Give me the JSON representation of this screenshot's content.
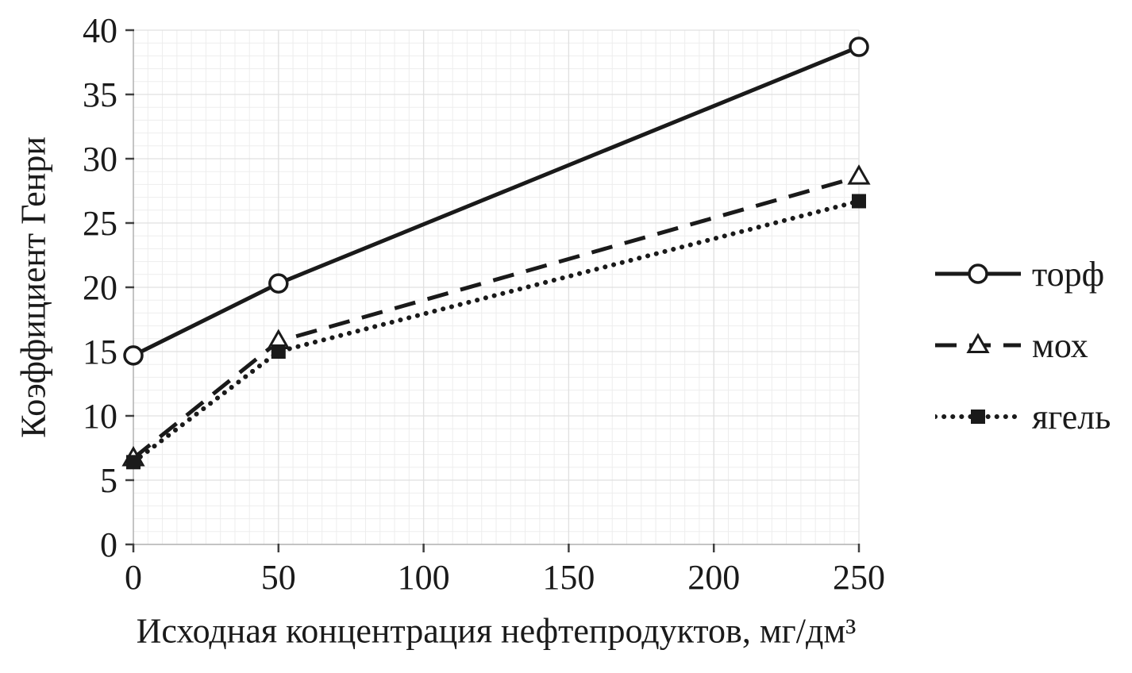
{
  "figure": {
    "background": "#ffffff"
  },
  "chart_data": {
    "type": "line",
    "title": "",
    "xlabel": "Исходная концентрация нефтепродуктов, мг/дм³",
    "ylabel": "Коэффициент Генри",
    "x": [
      0,
      50,
      250
    ],
    "series": [
      {
        "name": "торф",
        "values": [
          14.7,
          20.3,
          38.7
        ],
        "line_style": "solid",
        "marker": "open-circle"
      },
      {
        "name": "мох",
        "values": [
          6.7,
          15.8,
          28.6
        ],
        "line_style": "dashed",
        "marker": "open-triangle"
      },
      {
        "name": "ягель",
        "values": [
          6.4,
          15.0,
          26.7
        ],
        "line_style": "dotted",
        "marker": "filled-square"
      }
    ],
    "xlim": [
      0,
      250
    ],
    "ylim": [
      0,
      40
    ],
    "xticks": [
      0,
      50,
      100,
      150,
      200,
      250
    ],
    "yticks": [
      0,
      5,
      10,
      15,
      20,
      25,
      30,
      35,
      40
    ],
    "x_minor_step": 5,
    "y_minor_step": 1,
    "grid": true,
    "legend_position": "right",
    "colors": {
      "series": "#1a1a1a",
      "grid_minor": "#ededed",
      "grid_major": "#e0e0e0",
      "axis_line": "#b3b3b3",
      "tick": "#404040",
      "text": "#1a1a1a",
      "background": "#ffffff"
    }
  }
}
